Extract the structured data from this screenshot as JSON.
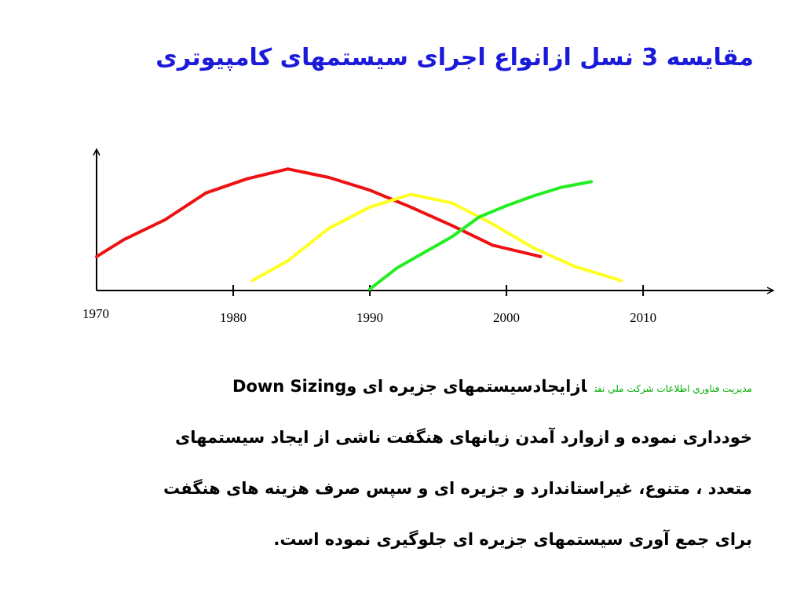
{
  "chart_data": {
    "type": "line",
    "title": "مقایسه 3 نسل ازانواع اجرای سیستمهای کامپیوتری",
    "xlim": [
      1970,
      2018.5
    ],
    "ylim": [
      0,
      100
    ],
    "xticks": [
      1970,
      1980,
      1990,
      2000,
      2010
    ],
    "series": [
      {
        "color": "#ee1111",
        "x": [
          1970,
          1972,
          1975,
          1978,
          1981,
          1984,
          1987,
          1990,
          1993,
          1996,
          1999,
          2002.5
        ],
        "values": [
          24,
          36,
          50,
          69,
          79,
          86,
          80,
          71,
          59,
          46,
          32,
          24
        ]
      },
      {
        "color": "#ffff22",
        "x": [
          1981.4,
          1984,
          1987,
          1990,
          1993,
          1996,
          1999,
          2002,
          2005,
          2008.4
        ],
        "values": [
          7,
          21,
          44,
          59,
          68,
          62,
          47,
          30,
          17,
          7
        ]
      },
      {
        "color": "#22ee22",
        "x": [
          1990,
          1992,
          1994,
          1996,
          1998,
          2000,
          2002,
          2004,
          2006.2
        ],
        "values": [
          1,
          16,
          27,
          38,
          52,
          60,
          67,
          73,
          77
        ]
      }
    ]
  },
  "paragraph": {
    "note": "مديريت فناوري اطلاعات شركت ملي نفت",
    "lines": [
      "ازایجادسیستمهای جزیره ای وDown Sizing",
      "خودداری نموده  و ازوارد آمدن زیانهای هنگفت ناشی از ایجاد سیستمهای",
      "متعدد ، متنوع، غیراستاندارد و جزیره ای و سپس صرف هزینه های هنگفت",
      "برای جمع آوری سیستمهای جزیره ای جلوگیری نموده است."
    ]
  }
}
